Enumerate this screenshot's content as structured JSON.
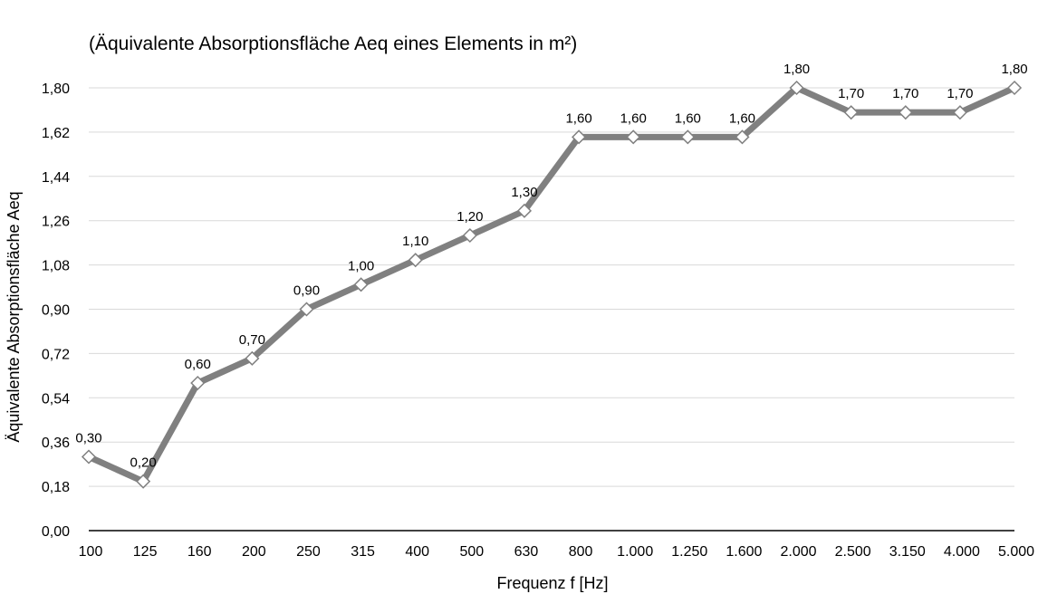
{
  "chart_data": {
    "type": "line",
    "title": "(Äquivalente Absorptionsfläche Aeq eines Elements in m²)",
    "xlabel": "Frequenz f [Hz]",
    "ylabel": "Äquivalente Absorptionsfläche Aeq",
    "categories": [
      "100",
      "125",
      "160",
      "200",
      "250",
      "315",
      "400",
      "500",
      "630",
      "800",
      "1.000",
      "1.250",
      "1.600",
      "2.000",
      "2.500",
      "3.150",
      "4.000",
      "5.000"
    ],
    "series": [
      {
        "values": [
          0.3,
          0.2,
          0.6,
          0.7,
          0.9,
          1.0,
          1.1,
          1.2,
          1.3,
          1.6,
          1.6,
          1.6,
          1.6,
          1.8,
          1.7,
          1.7,
          1.7,
          1.8
        ],
        "labels": [
          "0,30",
          "0,20",
          "0,60",
          "0,70",
          "0,90",
          "1,00",
          "1,10",
          "1,20",
          "1,30",
          "1,60",
          "1,60",
          "1,60",
          "1,60",
          "1,80",
          "1,70",
          "1,70",
          "1,70",
          "1,80"
        ]
      }
    ],
    "ylim": [
      0,
      1.8
    ],
    "yticks": [
      "0,00",
      "0,18",
      "0,36",
      "0,54",
      "0,72",
      "0,90",
      "1,08",
      "1,26",
      "1,44",
      "1,62",
      "1,80"
    ],
    "grid": true,
    "colors": {
      "line": "#808080",
      "marker_fill": "#ffffff",
      "marker_stroke": "#808080",
      "grid": "#d9d9d9",
      "axis": "#000000"
    }
  }
}
